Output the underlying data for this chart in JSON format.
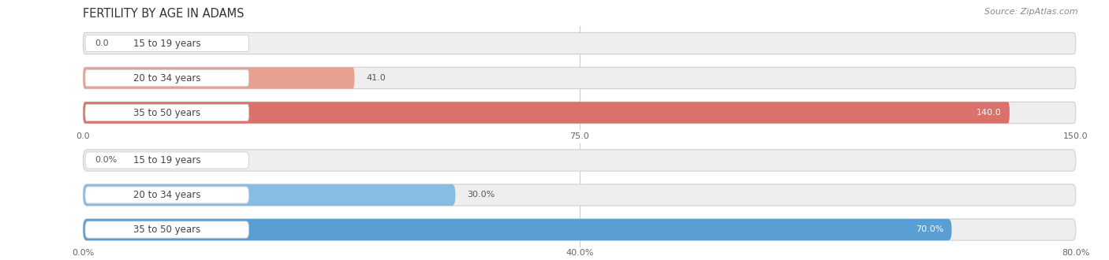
{
  "title": "FERTILITY BY AGE IN ADAMS",
  "source": "Source: ZipAtlas.com",
  "top_chart": {
    "categories": [
      "15 to 19 years",
      "20 to 34 years",
      "35 to 50 years"
    ],
    "values": [
      0.0,
      41.0,
      140.0
    ],
    "xlim": [
      0,
      150
    ],
    "xticks": [
      0.0,
      75.0,
      150.0
    ],
    "bar_color_light": "#e8a090",
    "bar_color_dark": "#d9726a",
    "label_inside_threshold": 110,
    "bg_color": "#eeeeee"
  },
  "bottom_chart": {
    "categories": [
      "15 to 19 years",
      "20 to 34 years",
      "35 to 50 years"
    ],
    "values": [
      0.0,
      30.0,
      70.0
    ],
    "xlim": [
      0,
      80
    ],
    "xticks": [
      0.0,
      40.0,
      80.0
    ],
    "bar_color_light": "#88bce0",
    "bar_color_dark": "#5a9fd4",
    "label_inside_threshold": 60,
    "bg_color": "#eeeeee"
  },
  "fig_bg": "#ffffff",
  "title_fontsize": 10.5,
  "source_fontsize": 8,
  "label_fontsize": 8,
  "tick_fontsize": 8,
  "bar_height": 0.62,
  "label_color_inside": "#ffffff",
  "label_color_outside": "#555555",
  "category_fontsize": 8.5,
  "pill_bg": "#ffffff",
  "pill_border": "#cccccc"
}
